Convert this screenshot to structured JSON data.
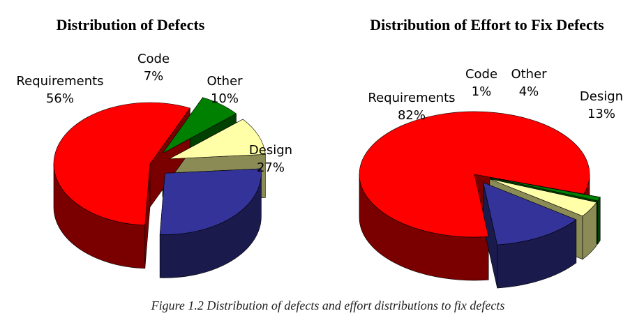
{
  "caption": "Figure 1.2 Distribution of defects and effort distributions to fix defects",
  "chart_data": [
    {
      "type": "pie",
      "title": "Distribution of Defects",
      "style": "3d-exploded",
      "slices": [
        {
          "name": "Requirements",
          "value": 56,
          "label": "56%",
          "color": "#ff0000",
          "side_color": "#7a0000"
        },
        {
          "name": "Code",
          "value": 7,
          "label": "7%",
          "color": "#008000",
          "side_color": "#004000"
        },
        {
          "name": "Other",
          "value": 10,
          "label": "10%",
          "color": "#ffffa8",
          "side_color": "#8b8b55"
        },
        {
          "name": "Design",
          "value": 27,
          "label": "27%",
          "color": "#333399",
          "side_color": "#1a1a4d"
        }
      ]
    },
    {
      "type": "pie",
      "title": "Distribution of Effort to Fix Defects",
      "style": "3d-exploded",
      "slices": [
        {
          "name": "Requirements",
          "value": 82,
          "label": "82%",
          "color": "#ff0000",
          "side_color": "#7a0000"
        },
        {
          "name": "Code",
          "value": 1,
          "label": "1%",
          "color": "#008000",
          "side_color": "#004000"
        },
        {
          "name": "Other",
          "value": 4,
          "label": "4%",
          "color": "#ffffa8",
          "side_color": "#8b8b55"
        },
        {
          "name": "Design",
          "value": 13,
          "label": "13%",
          "color": "#333399",
          "side_color": "#1a1a4d"
        }
      ]
    }
  ]
}
